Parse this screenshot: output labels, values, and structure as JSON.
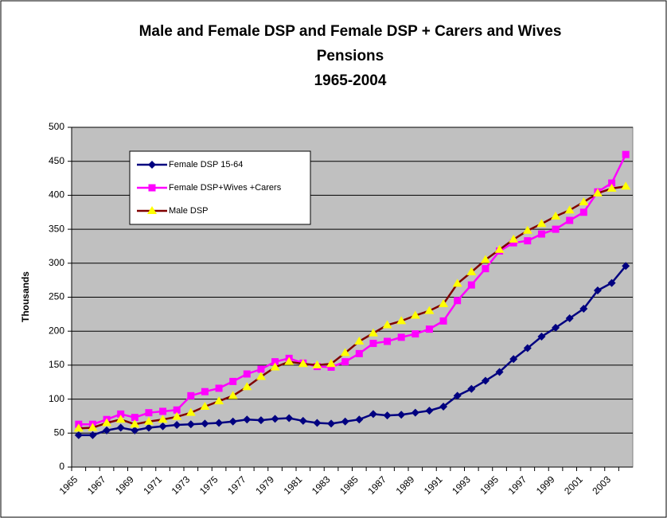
{
  "chart_data": {
    "type": "line",
    "title": [
      "Male and Female DSP and Female DSP + Carers and Wives",
      "Pensions",
      "1965-2004"
    ],
    "y_label": "Thousands",
    "categories": [
      "1965",
      null,
      "1967",
      null,
      "1969",
      null,
      "1971",
      null,
      "1973",
      null,
      "1975",
      null,
      "1977",
      null,
      "1979",
      null,
      "1981",
      null,
      "1983",
      null,
      "1985",
      null,
      "1987",
      null,
      "1989",
      null,
      "1991",
      null,
      "1993",
      null,
      "1995",
      null,
      "1997",
      null,
      "1999",
      null,
      "2001",
      null,
      "2003",
      null
    ],
    "series": [
      {
        "name": "Female DSP 15-64",
        "color": "#000080",
        "marker": "diamond",
        "marker_color": "#000080",
        "values": [
          47,
          47,
          54,
          58,
          54,
          58,
          60,
          62,
          63,
          64,
          65,
          67,
          70,
          69,
          71,
          72,
          68,
          65,
          64,
          67,
          70,
          78,
          76,
          77,
          80,
          83,
          89,
          105,
          115,
          127,
          140,
          159,
          175,
          192,
          205,
          219,
          233,
          260,
          271,
          296
        ]
      },
      {
        "name": "Female DSP+Wives +Carers",
        "color": "#ff00ff",
        "marker": "square",
        "marker_color": "#ff00ff",
        "values": [
          63,
          63,
          70,
          78,
          73,
          80,
          82,
          84,
          105,
          111,
          116,
          126,
          137,
          144,
          155,
          160,
          153,
          148,
          147,
          155,
          167,
          182,
          185,
          191,
          196,
          203,
          215,
          245,
          268,
          292,
          318,
          330,
          333,
          343,
          350,
          363,
          375,
          405,
          418,
          460
        ]
      },
      {
        "name": "Male DSP",
        "color": "#800000",
        "marker": "triangle",
        "marker_color": "#ffff00",
        "values": [
          57,
          58,
          65,
          70,
          63,
          67,
          70,
          74,
          80,
          89,
          97,
          105,
          118,
          133,
          147,
          155,
          152,
          150,
          152,
          168,
          185,
          197,
          209,
          215,
          223,
          230,
          240,
          270,
          287,
          305,
          320,
          335,
          348,
          358,
          369,
          378,
          390,
          403,
          410,
          413
        ]
      }
    ],
    "ylim": [
      0,
      500
    ],
    "yticks": [
      0,
      50,
      100,
      150,
      200,
      250,
      300,
      350,
      400,
      450,
      500
    ],
    "grid": true,
    "plot_background": "#c0c0c0",
    "legend": "upper left"
  }
}
